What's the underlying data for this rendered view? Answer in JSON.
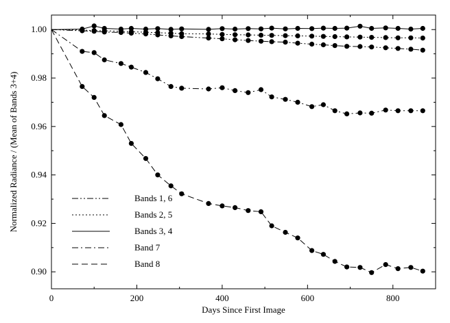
{
  "chart_data": {
    "type": "scatter",
    "title": "",
    "xlabel": "Days Since First Image",
    "ylabel": "Normalized Radiance / (Mean of Bands 3+4)",
    "xlim": [
      0,
      900
    ],
    "ylim": [
      0.893,
      1.006
    ],
    "x_ticks": [
      0,
      200,
      400,
      600,
      800
    ],
    "x_tick_labels": [
      "0",
      "200",
      "400",
      "600",
      "800"
    ],
    "y_ticks": [
      0.9,
      0.92,
      0.94,
      0.96,
      0.98,
      1.0
    ],
    "y_tick_labels": [
      "0.90",
      "0.92",
      "0.94",
      "0.96",
      "0.98",
      "1.00"
    ],
    "grid": false,
    "legend_position": "bottom-left",
    "series": [
      {
        "name": "Bands 1, 6",
        "dash": "dash-dot-dot",
        "x": [
          0,
          72,
          100,
          124,
          163,
          187,
          221,
          249,
          280,
          305,
          368,
          400,
          430,
          461,
          491,
          516,
          548,
          577,
          610,
          637,
          664,
          692,
          723,
          750,
          783,
          812,
          842,
          870
        ],
        "y": [
          1.0,
          0.9995,
          0.9993,
          0.999,
          0.9988,
          0.9985,
          0.9982,
          0.9978,
          0.9974,
          0.9971,
          0.9965,
          0.9962,
          0.9958,
          0.9955,
          0.9952,
          0.995,
          0.9948,
          0.9944,
          0.994,
          0.9937,
          0.9934,
          0.9931,
          0.993,
          0.9928,
          0.9925,
          0.9922,
          0.9919,
          0.9915
        ]
      },
      {
        "name": "Bands 2, 5",
        "dash": "dotted",
        "x": [
          0,
          72,
          100,
          124,
          163,
          187,
          221,
          249,
          280,
          305,
          368,
          400,
          430,
          461,
          491,
          516,
          548,
          577,
          610,
          637,
          664,
          692,
          723,
          750,
          783,
          812,
          842,
          870
        ],
        "y": [
          1.0,
          0.9998,
          0.9996,
          0.9995,
          0.9993,
          0.9991,
          0.9989,
          0.9987,
          0.9985,
          0.9983,
          0.9982,
          0.998,
          0.9979,
          0.9978,
          0.9977,
          0.9976,
          0.9975,
          0.9974,
          0.9973,
          0.9972,
          0.9971,
          0.997,
          0.9969,
          0.9968,
          0.9967,
          0.9966,
          0.9966,
          0.9965
        ]
      },
      {
        "name": "Bands 3, 4",
        "dash": "solid",
        "x": [
          0,
          72,
          100,
          124,
          163,
          187,
          221,
          249,
          280,
          305,
          368,
          400,
          430,
          461,
          491,
          516,
          548,
          577,
          610,
          637,
          664,
          692,
          723,
          750,
          783,
          812,
          842,
          870
        ],
        "y": [
          1.0,
          1.0002,
          1.0015,
          1.0005,
          1.0002,
          1.0005,
          1.0002,
          1.0004,
          1.0001,
          1.0003,
          1.0001,
          1.0004,
          1.0002,
          1.0004,
          1.0003,
          1.0006,
          1.0003,
          1.0005,
          1.0004,
          1.0006,
          1.0005,
          1.0006,
          1.0014,
          1.0005,
          1.0007,
          1.0005,
          1.0002,
          1.0005
        ]
      },
      {
        "name": "Band 7",
        "dash": "dash-dot",
        "x": [
          0,
          72,
          100,
          124,
          163,
          187,
          221,
          249,
          280,
          305,
          368,
          400,
          430,
          461,
          491,
          516,
          548,
          577,
          610,
          637,
          664,
          692,
          723,
          750,
          783,
          812,
          842,
          870
        ],
        "y": [
          1.0,
          0.991,
          0.9905,
          0.9875,
          0.986,
          0.9845,
          0.9823,
          0.9797,
          0.9765,
          0.9758,
          0.9755,
          0.976,
          0.9748,
          0.974,
          0.9752,
          0.9722,
          0.9712,
          0.97,
          0.9682,
          0.969,
          0.9665,
          0.9652,
          0.9656,
          0.9655,
          0.9668,
          0.9665,
          0.9665,
          0.9665
        ]
      },
      {
        "name": "Band 8",
        "dash": "dashed",
        "x": [
          0,
          72,
          100,
          124,
          163,
          187,
          221,
          249,
          280,
          305,
          368,
          400,
          430,
          461,
          491,
          516,
          548,
          577,
          610,
          637,
          664,
          692,
          723,
          750,
          783,
          812,
          842,
          870
        ],
        "y": [
          1.0,
          0.9765,
          0.972,
          0.9645,
          0.9608,
          0.953,
          0.9468,
          0.94,
          0.9355,
          0.9322,
          0.9282,
          0.9272,
          0.9265,
          0.9253,
          0.9248,
          0.919,
          0.9163,
          0.914,
          0.9088,
          0.9072,
          0.9043,
          0.902,
          0.9018,
          0.8997,
          0.903,
          0.9013,
          0.9018,
          0.9003
        ]
      }
    ]
  },
  "colors": {
    "ink": "#000000",
    "background": "#ffffff"
  }
}
